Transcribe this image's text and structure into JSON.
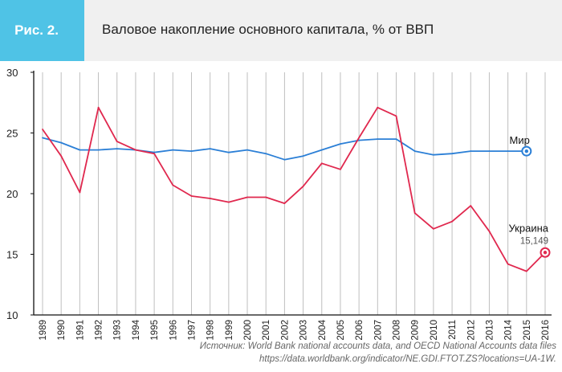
{
  "figure": {
    "badge": "Рис. 2.",
    "title": "Валовое накопление основного капитала, % от ВВП"
  },
  "colors": {
    "badge": "#4fc3e6",
    "world": "#2b7fd6",
    "ukraine": "#e0284e",
    "axis": "#111111",
    "grid": "#bfbfbf"
  },
  "chart_data": {
    "type": "line",
    "title": "Валовое накопление основного капитала, % от ВВП",
    "x": [
      "1989",
      "1990",
      "1991",
      "1992",
      "1993",
      "1994",
      "1995",
      "1996",
      "1997",
      "1998",
      "1999",
      "2000",
      "2001",
      "2002",
      "2003",
      "2004",
      "2005",
      "2006",
      "2007",
      "2008",
      "2009",
      "2010",
      "2011",
      "2012",
      "2013",
      "2014",
      "2015",
      "2016"
    ],
    "y_ticks": [
      "30",
      "25",
      "20",
      "15",
      "10"
    ],
    "ylim": [
      10,
      30
    ],
    "grid": "vertical",
    "series": [
      {
        "name": "Мир",
        "color": "#2b7fd6",
        "values": [
          24.6,
          24.2,
          23.6,
          23.6,
          23.7,
          23.6,
          23.4,
          23.6,
          23.5,
          23.7,
          23.4,
          23.6,
          23.3,
          22.8,
          23.1,
          23.6,
          24.1,
          24.4,
          24.5,
          24.5,
          23.5,
          23.2,
          23.3,
          23.5,
          23.5,
          23.5,
          23.5,
          null
        ]
      },
      {
        "name": "Украина",
        "color": "#e0284e",
        "values": [
          25.3,
          23.1,
          20.1,
          27.1,
          24.3,
          23.6,
          23.3,
          20.7,
          19.8,
          19.6,
          19.3,
          19.7,
          19.7,
          19.2,
          20.6,
          22.5,
          22.0,
          24.6,
          27.1,
          26.4,
          18.4,
          17.1,
          17.7,
          19.0,
          16.9,
          14.2,
          13.6,
          15.149
        ],
        "end_label": "15,149"
      }
    ]
  },
  "source": {
    "line1": "Источник: World Bank national accounts data, and OECD National Accounts data files",
    "line2": "https://data.worldbank.org/indicator/NE.GDI.FTOT.ZS?locations=UA-1W."
  }
}
